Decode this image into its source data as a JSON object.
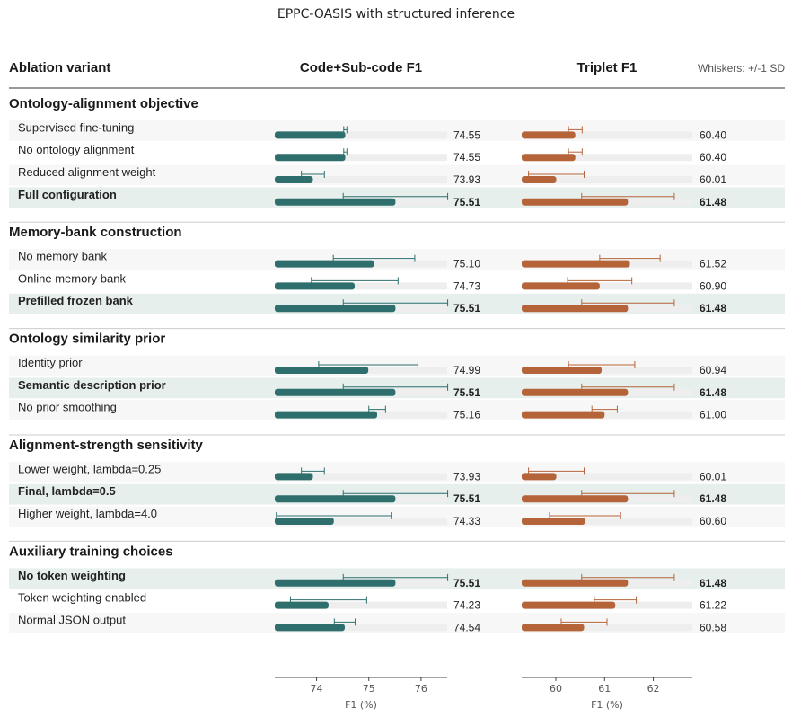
{
  "title": "EPPC-OASIS with structured inference",
  "header": {
    "variant_label": "Ablation variant",
    "whisker_note": "Whiskers: +/-1 SD"
  },
  "colors": {
    "code_series": "#2e6f6e",
    "triplet_series": "#b5643a",
    "track": "#eeeeee",
    "highlight": "#e6efeb"
  },
  "chart_data": {
    "type": "bar",
    "orientation": "horizontal",
    "error_bars": "+/-1 SD",
    "panels": [
      {
        "key": "code",
        "name": "Code+Sub-code F1",
        "xlabel": "F1 (%)",
        "xlim": [
          73.2,
          76.5
        ],
        "ticks": [
          74,
          75,
          76
        ],
        "tick_labels": [
          "74",
          "75",
          "76"
        ]
      },
      {
        "key": "triplet",
        "name": "Triplet F1",
        "xlabel": "F1 (%)",
        "xlim": [
          59.3,
          62.8
        ],
        "ticks": [
          60,
          61,
          62
        ],
        "tick_labels": [
          "60",
          "61",
          "62"
        ]
      }
    ],
    "groups": [
      {
        "name": "Ontology-alignment objective",
        "rows": [
          {
            "label": "Supervised fine-tuning",
            "best": false,
            "code": {
              "value": 74.55,
              "text": "74.55",
              "sd": 0.03
            },
            "triplet": {
              "value": 60.4,
              "text": "60.40",
              "sd": 0.14
            }
          },
          {
            "label": "No ontology alignment",
            "best": false,
            "code": {
              "value": 74.55,
              "text": "74.55",
              "sd": 0.03
            },
            "triplet": {
              "value": 60.4,
              "text": "60.40",
              "sd": 0.14
            }
          },
          {
            "label": "Reduced alignment weight",
            "best": false,
            "code": {
              "value": 73.93,
              "text": "73.93",
              "sd": 0.22
            },
            "triplet": {
              "value": 60.01,
              "text": "60.01",
              "sd": 0.57
            }
          },
          {
            "label": "Full configuration",
            "best": true,
            "code": {
              "value": 75.51,
              "text": "75.51",
              "sd": 1.0
            },
            "triplet": {
              "value": 61.48,
              "text": "61.48",
              "sd": 0.95
            }
          }
        ]
      },
      {
        "name": "Memory-bank construction",
        "rows": [
          {
            "label": "No memory bank",
            "best": false,
            "code": {
              "value": 75.1,
              "text": "75.10",
              "sd": 0.78
            },
            "triplet": {
              "value": 61.52,
              "text": "61.52",
              "sd": 0.62
            }
          },
          {
            "label": "Online memory bank",
            "best": false,
            "code": {
              "value": 74.73,
              "text": "74.73",
              "sd": 0.83
            },
            "triplet": {
              "value": 60.9,
              "text": "60.90",
              "sd": 0.66
            }
          },
          {
            "label": "Prefilled frozen bank",
            "best": true,
            "code": {
              "value": 75.51,
              "text": "75.51",
              "sd": 1.0
            },
            "triplet": {
              "value": 61.48,
              "text": "61.48",
              "sd": 0.95
            }
          }
        ]
      },
      {
        "name": "Ontology similarity prior",
        "rows": [
          {
            "label": "Identity prior",
            "best": false,
            "code": {
              "value": 74.99,
              "text": "74.99",
              "sd": 0.95
            },
            "triplet": {
              "value": 60.94,
              "text": "60.94",
              "sd": 0.68
            }
          },
          {
            "label": "Semantic description prior",
            "best": true,
            "code": {
              "value": 75.51,
              "text": "75.51",
              "sd": 1.0
            },
            "triplet": {
              "value": 61.48,
              "text": "61.48",
              "sd": 0.95
            }
          },
          {
            "label": "No prior smoothing",
            "best": false,
            "code": {
              "value": 75.16,
              "text": "75.16",
              "sd": 0.16
            },
            "triplet": {
              "value": 61.0,
              "text": "61.00",
              "sd": 0.26
            }
          }
        ]
      },
      {
        "name": "Alignment-strength sensitivity",
        "rows": [
          {
            "label": "Lower weight, lambda=0.25",
            "best": false,
            "code": {
              "value": 73.93,
              "text": "73.93",
              "sd": 0.22
            },
            "triplet": {
              "value": 60.01,
              "text": "60.01",
              "sd": 0.57
            }
          },
          {
            "label": "Final, lambda=0.5",
            "best": true,
            "code": {
              "value": 75.51,
              "text": "75.51",
              "sd": 1.0
            },
            "triplet": {
              "value": 61.48,
              "text": "61.48",
              "sd": 0.95
            }
          },
          {
            "label": "Higher weight, lambda=4.0",
            "best": false,
            "code": {
              "value": 74.33,
              "text": "74.33",
              "sd": 1.1
            },
            "triplet": {
              "value": 60.6,
              "text": "60.60",
              "sd": 0.73
            }
          }
        ]
      },
      {
        "name": "Auxiliary training choices",
        "rows": [
          {
            "label": "No token weighting",
            "best": true,
            "code": {
              "value": 75.51,
              "text": "75.51",
              "sd": 1.0
            },
            "triplet": {
              "value": 61.48,
              "text": "61.48",
              "sd": 0.95
            }
          },
          {
            "label": "Token weighting enabled",
            "best": false,
            "code": {
              "value": 74.23,
              "text": "74.23",
              "sd": 0.73
            },
            "triplet": {
              "value": 61.22,
              "text": "61.22",
              "sd": 0.43
            }
          },
          {
            "label": "Normal JSON output",
            "best": false,
            "code": {
              "value": 74.54,
              "text": "74.54",
              "sd": 0.2
            },
            "triplet": {
              "value": 60.58,
              "text": "60.58",
              "sd": 0.47
            }
          }
        ]
      }
    ]
  }
}
